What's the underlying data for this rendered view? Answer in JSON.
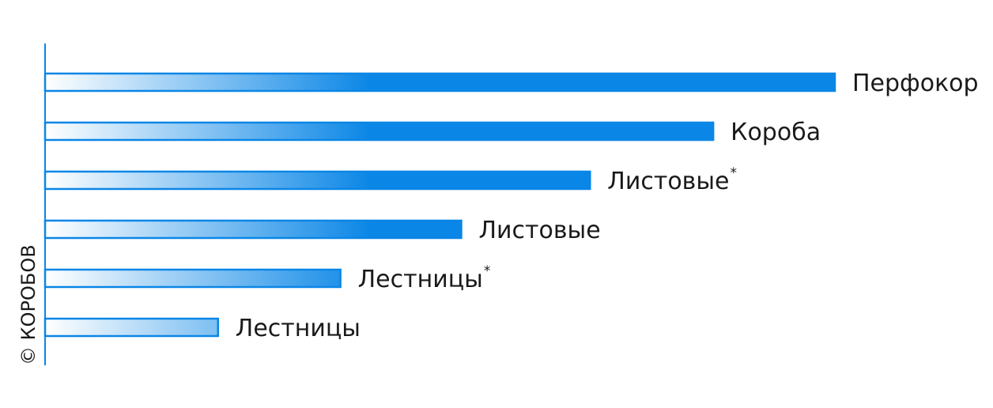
{
  "chart_data": {
    "type": "bar",
    "orientation": "horizontal",
    "categories": [
      "Перфокор",
      "Короба",
      "Листовые",
      "Листовые",
      "Лестницы",
      "Лестницы"
    ],
    "asterisks": [
      false,
      false,
      true,
      false,
      true,
      false
    ],
    "asterisk_symbol": "*",
    "values": [
      1.0,
      0.846,
      0.69,
      0.527,
      0.374,
      0.219
    ],
    "xlim": [
      0,
      1
    ],
    "grid": false,
    "legend": "none",
    "bar_color": "#0a86e6",
    "gradient_start_color": "#ffffff"
  },
  "watermark": "© КОРОБОВ"
}
